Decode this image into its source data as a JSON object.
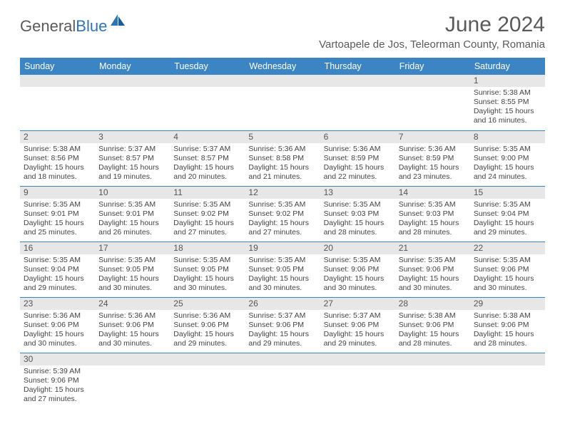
{
  "logo": {
    "part1": "General",
    "part2": "Blue"
  },
  "title": "June 2024",
  "location": "Vartoapele de Jos, Teleorman County, Romania",
  "colors": {
    "header_bg": "#3b85c5",
    "header_text": "#ffffff",
    "daynum_bg": "#e7e7e7",
    "border": "#3b85c5",
    "logo_gray": "#5a5a5a",
    "logo_blue": "#2d74b8"
  },
  "weekdays": [
    "Sunday",
    "Monday",
    "Tuesday",
    "Wednesday",
    "Thursday",
    "Friday",
    "Saturday"
  ],
  "weeks": [
    [
      null,
      null,
      null,
      null,
      null,
      null,
      {
        "n": "1",
        "sr": "Sunrise: 5:38 AM",
        "ss": "Sunset: 8:55 PM",
        "d1": "Daylight: 15 hours",
        "d2": "and 16 minutes."
      }
    ],
    [
      {
        "n": "2",
        "sr": "Sunrise: 5:38 AM",
        "ss": "Sunset: 8:56 PM",
        "d1": "Daylight: 15 hours",
        "d2": "and 18 minutes."
      },
      {
        "n": "3",
        "sr": "Sunrise: 5:37 AM",
        "ss": "Sunset: 8:57 PM",
        "d1": "Daylight: 15 hours",
        "d2": "and 19 minutes."
      },
      {
        "n": "4",
        "sr": "Sunrise: 5:37 AM",
        "ss": "Sunset: 8:57 PM",
        "d1": "Daylight: 15 hours",
        "d2": "and 20 minutes."
      },
      {
        "n": "5",
        "sr": "Sunrise: 5:36 AM",
        "ss": "Sunset: 8:58 PM",
        "d1": "Daylight: 15 hours",
        "d2": "and 21 minutes."
      },
      {
        "n": "6",
        "sr": "Sunrise: 5:36 AM",
        "ss": "Sunset: 8:59 PM",
        "d1": "Daylight: 15 hours",
        "d2": "and 22 minutes."
      },
      {
        "n": "7",
        "sr": "Sunrise: 5:36 AM",
        "ss": "Sunset: 8:59 PM",
        "d1": "Daylight: 15 hours",
        "d2": "and 23 minutes."
      },
      {
        "n": "8",
        "sr": "Sunrise: 5:35 AM",
        "ss": "Sunset: 9:00 PM",
        "d1": "Daylight: 15 hours",
        "d2": "and 24 minutes."
      }
    ],
    [
      {
        "n": "9",
        "sr": "Sunrise: 5:35 AM",
        "ss": "Sunset: 9:01 PM",
        "d1": "Daylight: 15 hours",
        "d2": "and 25 minutes."
      },
      {
        "n": "10",
        "sr": "Sunrise: 5:35 AM",
        "ss": "Sunset: 9:01 PM",
        "d1": "Daylight: 15 hours",
        "d2": "and 26 minutes."
      },
      {
        "n": "11",
        "sr": "Sunrise: 5:35 AM",
        "ss": "Sunset: 9:02 PM",
        "d1": "Daylight: 15 hours",
        "d2": "and 27 minutes."
      },
      {
        "n": "12",
        "sr": "Sunrise: 5:35 AM",
        "ss": "Sunset: 9:02 PM",
        "d1": "Daylight: 15 hours",
        "d2": "and 27 minutes."
      },
      {
        "n": "13",
        "sr": "Sunrise: 5:35 AM",
        "ss": "Sunset: 9:03 PM",
        "d1": "Daylight: 15 hours",
        "d2": "and 28 minutes."
      },
      {
        "n": "14",
        "sr": "Sunrise: 5:35 AM",
        "ss": "Sunset: 9:03 PM",
        "d1": "Daylight: 15 hours",
        "d2": "and 28 minutes."
      },
      {
        "n": "15",
        "sr": "Sunrise: 5:35 AM",
        "ss": "Sunset: 9:04 PM",
        "d1": "Daylight: 15 hours",
        "d2": "and 29 minutes."
      }
    ],
    [
      {
        "n": "16",
        "sr": "Sunrise: 5:35 AM",
        "ss": "Sunset: 9:04 PM",
        "d1": "Daylight: 15 hours",
        "d2": "and 29 minutes."
      },
      {
        "n": "17",
        "sr": "Sunrise: 5:35 AM",
        "ss": "Sunset: 9:05 PM",
        "d1": "Daylight: 15 hours",
        "d2": "and 30 minutes."
      },
      {
        "n": "18",
        "sr": "Sunrise: 5:35 AM",
        "ss": "Sunset: 9:05 PM",
        "d1": "Daylight: 15 hours",
        "d2": "and 30 minutes."
      },
      {
        "n": "19",
        "sr": "Sunrise: 5:35 AM",
        "ss": "Sunset: 9:05 PM",
        "d1": "Daylight: 15 hours",
        "d2": "and 30 minutes."
      },
      {
        "n": "20",
        "sr": "Sunrise: 5:35 AM",
        "ss": "Sunset: 9:06 PM",
        "d1": "Daylight: 15 hours",
        "d2": "and 30 minutes."
      },
      {
        "n": "21",
        "sr": "Sunrise: 5:35 AM",
        "ss": "Sunset: 9:06 PM",
        "d1": "Daylight: 15 hours",
        "d2": "and 30 minutes."
      },
      {
        "n": "22",
        "sr": "Sunrise: 5:35 AM",
        "ss": "Sunset: 9:06 PM",
        "d1": "Daylight: 15 hours",
        "d2": "and 30 minutes."
      }
    ],
    [
      {
        "n": "23",
        "sr": "Sunrise: 5:36 AM",
        "ss": "Sunset: 9:06 PM",
        "d1": "Daylight: 15 hours",
        "d2": "and 30 minutes."
      },
      {
        "n": "24",
        "sr": "Sunrise: 5:36 AM",
        "ss": "Sunset: 9:06 PM",
        "d1": "Daylight: 15 hours",
        "d2": "and 30 minutes."
      },
      {
        "n": "25",
        "sr": "Sunrise: 5:36 AM",
        "ss": "Sunset: 9:06 PM",
        "d1": "Daylight: 15 hours",
        "d2": "and 29 minutes."
      },
      {
        "n": "26",
        "sr": "Sunrise: 5:37 AM",
        "ss": "Sunset: 9:06 PM",
        "d1": "Daylight: 15 hours",
        "d2": "and 29 minutes."
      },
      {
        "n": "27",
        "sr": "Sunrise: 5:37 AM",
        "ss": "Sunset: 9:06 PM",
        "d1": "Daylight: 15 hours",
        "d2": "and 29 minutes."
      },
      {
        "n": "28",
        "sr": "Sunrise: 5:38 AM",
        "ss": "Sunset: 9:06 PM",
        "d1": "Daylight: 15 hours",
        "d2": "and 28 minutes."
      },
      {
        "n": "29",
        "sr": "Sunrise: 5:38 AM",
        "ss": "Sunset: 9:06 PM",
        "d1": "Daylight: 15 hours",
        "d2": "and 28 minutes."
      }
    ],
    [
      {
        "n": "30",
        "sr": "Sunrise: 5:39 AM",
        "ss": "Sunset: 9:06 PM",
        "d1": "Daylight: 15 hours",
        "d2": "and 27 minutes."
      },
      null,
      null,
      null,
      null,
      null,
      null
    ]
  ]
}
